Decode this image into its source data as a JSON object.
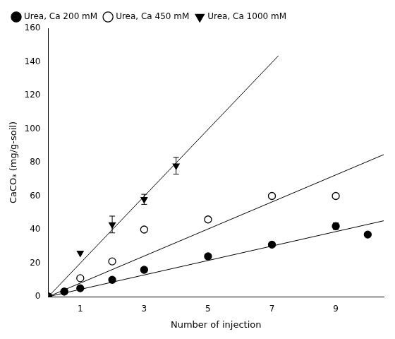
{
  "chart_data": {
    "type": "scatter",
    "xlabel": "Number of injection",
    "ylabel": "CaCO₃ (mg/g-soil)",
    "xlim": [
      0,
      10.5
    ],
    "ylim": [
      0,
      160
    ],
    "xticks": [
      1,
      3,
      5,
      7,
      9
    ],
    "yticks": [
      0,
      20,
      40,
      60,
      80,
      100,
      120,
      140,
      160
    ],
    "grid": false,
    "legend": "upper left",
    "series": [
      {
        "name": "Urea, Ca 200 mM",
        "color": "#000000",
        "marker": "circle",
        "x": [
          0,
          0.5,
          1,
          2,
          3,
          5,
          7,
          9,
          10
        ],
        "values": [
          0,
          3,
          5,
          10,
          16,
          24,
          31,
          42,
          37
        ],
        "yerr": [
          0,
          0,
          0,
          0,
          0,
          0,
          0,
          2,
          0
        ],
        "fit": {
          "x": [
            0,
            10.5
          ],
          "values": [
            0,
            45.21727019
          ]
        }
      },
      {
        "name": "Urea, Ca 450 mM",
        "color": "#000000",
        "marker": "open_circle",
        "x": [
          0,
          0.5,
          1,
          2,
          3,
          5,
          7,
          9
        ],
        "values": [
          0,
          3,
          11,
          21,
          40,
          46,
          60,
          60
        ],
        "yerr": [
          0,
          0,
          0,
          0,
          0,
          0,
          0,
          0
        ],
        "fit": {
          "x": [
            0,
            10.5
          ],
          "values": [
            0,
            84.65140325
          ]
        }
      },
      {
        "name": "Urea, Ca 1000 mM",
        "color": "#000000",
        "marker": "triangle_down",
        "x": [
          0,
          1,
          2,
          3,
          4
        ],
        "values": [
          0,
          26,
          43,
          58,
          78
        ],
        "yerr": [
          0,
          0,
          5,
          3,
          5
        ],
        "fit": {
          "x": [
            0,
            7.2
          ],
          "values": [
            0,
            143.52
          ]
        }
      }
    ]
  }
}
